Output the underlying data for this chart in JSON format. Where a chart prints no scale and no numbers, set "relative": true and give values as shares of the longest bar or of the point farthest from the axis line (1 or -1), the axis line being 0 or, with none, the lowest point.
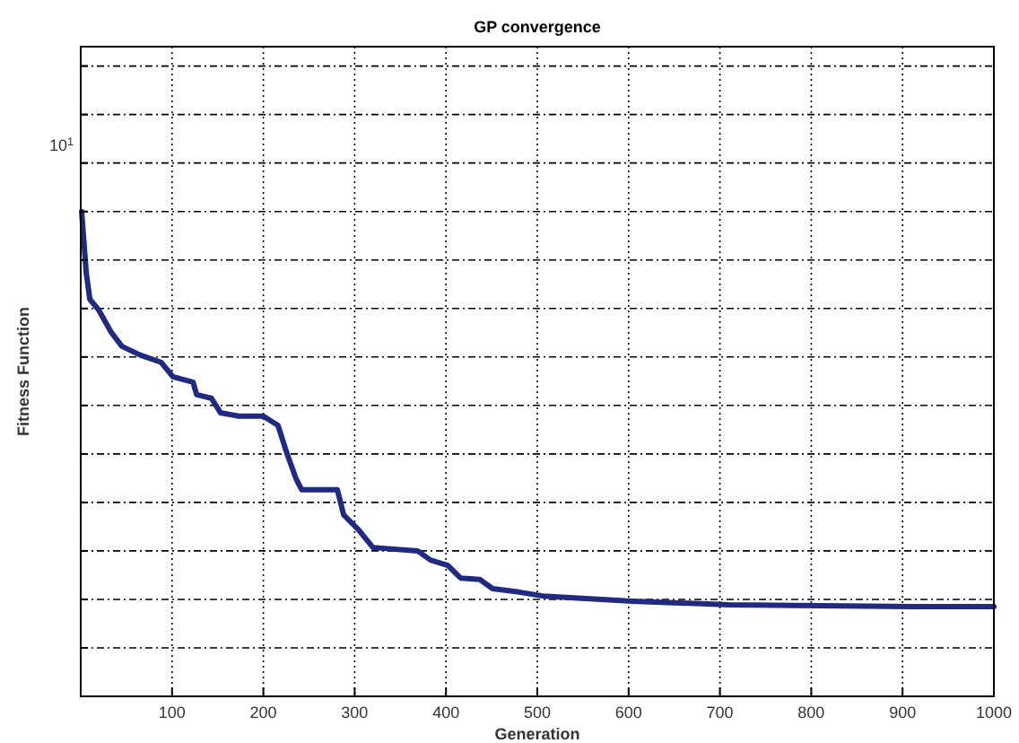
{
  "chart_data": {
    "type": "line",
    "title": "GP convergence",
    "xlabel": "Generation",
    "ylabel": "Fitness Function",
    "grid": true,
    "line_style": "solid",
    "relative": true,
    "annotations": [
      "10$^{1}$"
    ],
    "xlim": [
      0,
      1000
    ],
    "xticks": [
      100,
      200,
      300,
      400,
      500,
      600,
      700,
      800,
      900,
      1000
    ],
    "series": [
      {
        "color": "#1f2a80",
        "x": [
          1,
          6,
          10,
          20,
          33,
          45,
          65,
          88,
          101,
          123,
          127,
          143,
          153,
          173,
          200,
          216,
          226,
          236,
          242,
          281,
          288,
          304,
          320,
          369,
          383,
          402,
          416,
          437,
          451,
          480,
          506,
          604,
          710,
          918,
          1000
        ],
        "values": [
          1,
          0.874,
          0.819,
          0.796,
          0.752,
          0.722,
          0.704,
          0.689,
          0.659,
          0.648,
          0.622,
          0.615,
          0.585,
          0.578,
          0.578,
          0.559,
          0.5,
          0.448,
          0.426,
          0.426,
          0.374,
          0.344,
          0.307,
          0.3,
          0.281,
          0.27,
          0.244,
          0.241,
          0.222,
          0.215,
          0.207,
          0.196,
          0.189,
          0.185,
          0.185
        ]
      }
    ]
  }
}
